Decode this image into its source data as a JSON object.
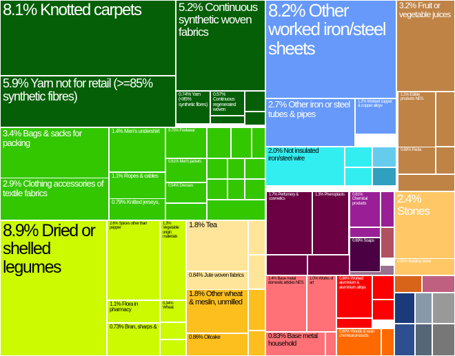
{
  "chart_data": {
    "type": "treemap",
    "items": [
      {
        "label": "8.1% Knotted carpets",
        "value": 8.1,
        "color": "#055f06"
      },
      {
        "label": "5.2% Continuous synthetic woven fabrics",
        "value": 5.2,
        "color": "#055f06"
      },
      {
        "label": "5.9% Yarn not for retail (>=85% synthetic fibres)",
        "value": 5.9,
        "color": "#055f06"
      },
      {
        "label": "0.74% Yarn (<85% synthetic fibres)",
        "value": 0.74,
        "color": "#055f06"
      },
      {
        "label": "0.57% Continuous regenerated woven",
        "value": 0.57,
        "color": "#055f06"
      },
      {
        "label": "3.4% Bags & sacks for packing",
        "value": 3.4,
        "color": "#33c700"
      },
      {
        "label": "2.9% Clothing accessories of textile fabrics",
        "value": 2.9,
        "color": "#33c700"
      },
      {
        "label": "1.4% Men's undershirt",
        "value": 1.4,
        "color": "#33c700"
      },
      {
        "label": "1.1% Ropes & cables",
        "value": 1.1,
        "color": "#33c700"
      },
      {
        "label": "0.79% Knitted jerseys,",
        "value": 0.79,
        "color": "#33c700"
      },
      {
        "label": "0.75% Footwear",
        "value": 0.75,
        "color": "#33c700"
      },
      {
        "label": "0.61% Men's jackets",
        "value": 0.61,
        "color": "#33c700"
      },
      {
        "label": "0.54% Dresses",
        "value": 0.54,
        "color": "#33c700"
      },
      {
        "label": "8.9% Dried or shelled legumes",
        "value": 8.9,
        "color": "#ccfa00"
      },
      {
        "label": "2.6% Spices other than pepper",
        "value": 2.6,
        "color": "#ccfa00"
      },
      {
        "label": "1.3% Vegetable origin materials",
        "value": 1.3,
        "color": "#ccfa00"
      },
      {
        "label": "1.1% Flora in pharmacy",
        "value": 1.1,
        "color": "#ccfa00"
      },
      {
        "label": "0.34% Wheat",
        "value": 0.34,
        "color": "#ccfa00"
      },
      {
        "label": "0.73% Bran, sharps &",
        "value": 0.73,
        "color": "#ccfa00"
      },
      {
        "label": "1.8% Tea",
        "value": 1.8,
        "color": "#ffe599"
      },
      {
        "label": "0.84% Jute woven fabrics",
        "value": 0.84,
        "color": "#ffe599"
      },
      {
        "label": "1.8% Other wheat & meslin, unmilled",
        "value": 1.8,
        "color": "#fdbf1e"
      },
      {
        "label": "0.86% Oilcake",
        "value": 0.86,
        "color": "#fdbf1e"
      },
      {
        "label": "8.2% Other worked iron/steel sheets",
        "value": 8.2,
        "color": "#6699fa"
      },
      {
        "label": "2.7% Other iron or steel tubes & pipes",
        "value": 2.7,
        "color": "#6699fa"
      },
      {
        "label": "1.2% Worked copper & copper alloys",
        "value": 1.2,
        "color": "#6699fa"
      },
      {
        "label": "2.0% Not insulated iron/steel wire",
        "value": 2.0,
        "color": "#33eef0"
      },
      {
        "label": "3.2% Fruit or vegetable juices",
        "value": 3.2,
        "color": "#bf8346"
      },
      {
        "label": "1.1% Edible products NES.",
        "value": 1.1,
        "color": "#bf8346"
      },
      {
        "label": "0.69% Pasta",
        "value": 0.69,
        "color": "#bf8346"
      },
      {
        "label": "2.4% Stones",
        "value": 2.4,
        "color": "#ffc766"
      },
      {
        "label": "0.55% Building stone",
        "value": 0.55,
        "color": "#ffc766"
      },
      {
        "label": "1.7% Perfumery & cosmetics",
        "value": 1.7,
        "color": "#6b0043"
      },
      {
        "label": "1.3% Phenoplasts",
        "value": 1.3,
        "color": "#6b0043"
      },
      {
        "label": "0.61% Chemical products",
        "value": 0.61,
        "color": "#9a1f96"
      },
      {
        "label": "0.69% Soaps",
        "value": 0.69,
        "color": "#4a0043"
      },
      {
        "label": "1.4% Base metal domestic articles NES.",
        "value": 1.4,
        "color": "#ff7077"
      },
      {
        "label": "1.0% Works of art",
        "value": 1.0,
        "color": "#ff7077"
      },
      {
        "label": "0.83% Base metal household",
        "value": 0.83,
        "color": "#ff7077"
      },
      {
        "label": "0.86% Worked aluminium & aluminium alloys",
        "value": 0.86,
        "color": "#fa0000"
      },
      {
        "label": "0.80% Woods & resin chemical products",
        "value": 0.8,
        "color": "#ff6a00"
      }
    ]
  }
}
